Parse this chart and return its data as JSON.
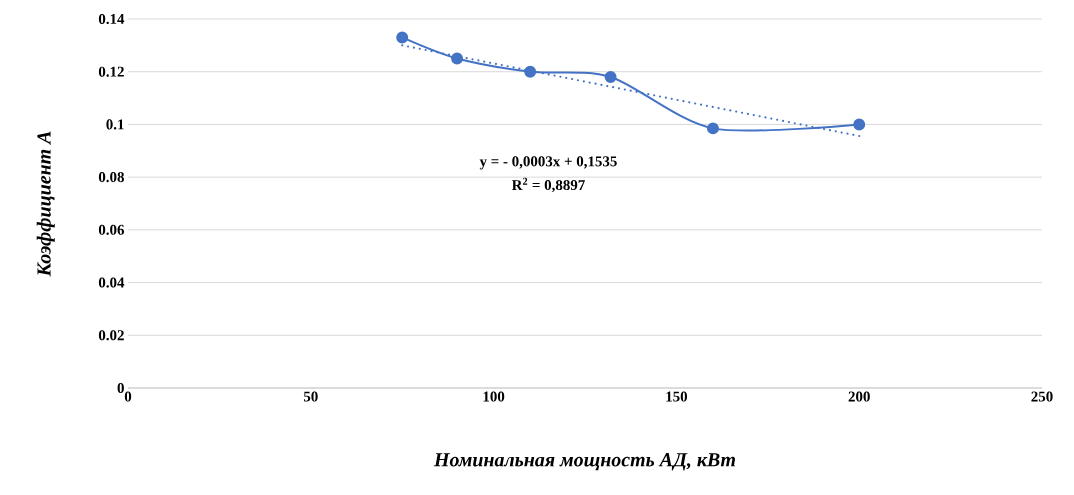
{
  "chart_data": {
    "type": "line",
    "xlabel": "Номинальная мощность АД, кВт",
    "ylabel": "Коэффициент А",
    "x": [
      75,
      90,
      110,
      132,
      160,
      200
    ],
    "series": [
      {
        "color": "#4472c4",
        "values": [
          0.133,
          0.125,
          0.12,
          0.118,
          0.0985,
          0.1
        ],
        "marker": "circle",
        "line_style": "solid"
      },
      {
        "type": "line",
        "color": "#4472c4",
        "x": [
          75,
          200
        ],
        "values": [
          0.13,
          0.0956
        ],
        "marker": "none",
        "line_style": "dotted"
      }
    ],
    "annotations": [
      "y = - 0,0003x + 0,1535",
      "R$^{2}$ = 0,8897"
    ],
    "xlim": [
      0,
      250
    ],
    "xticks": [
      0,
      50,
      100,
      150,
      200,
      250
    ],
    "ylim": [
      0,
      0.14
    ],
    "yticks": [
      0,
      0.02,
      0.04,
      0.06,
      0.08,
      0.1,
      0.12,
      0.14
    ],
    "grid": "y"
  }
}
